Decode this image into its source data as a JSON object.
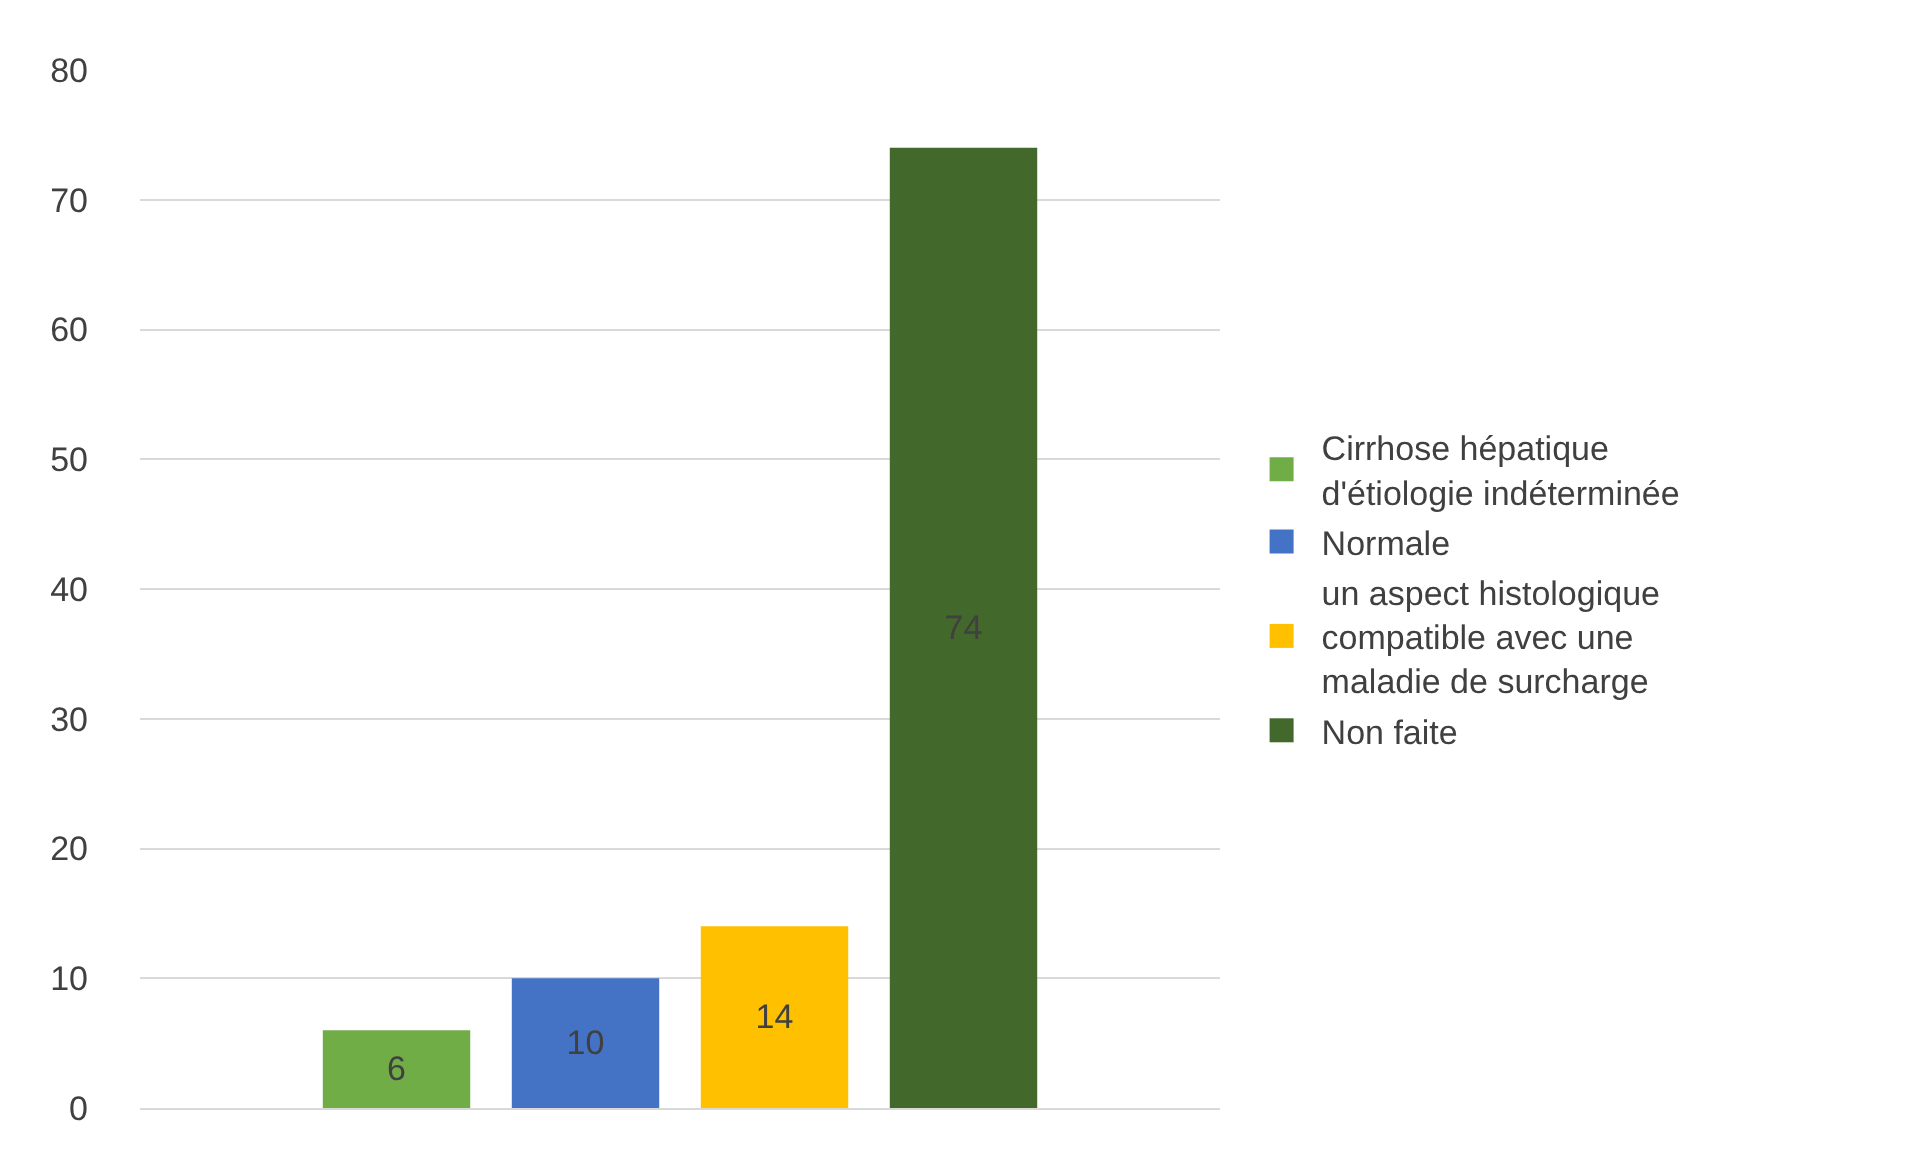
{
  "chart_data": {
    "type": "bar",
    "categories": [
      null
    ],
    "series": [
      {
        "name": "Cirrhose hépatique d'étiologie indéterminée",
        "color": "#70ad47",
        "values": [
          6
        ]
      },
      {
        "name": "Normale",
        "color": "#4472c4",
        "values": [
          10
        ]
      },
      {
        "name": "un aspect histologique compatible avec une maladie de surcharge",
        "color": "#ffc000",
        "values": [
          14
        ]
      },
      {
        "name": "Non faite",
        "color": "#43682b",
        "values": [
          74
        ]
      }
    ],
    "ylim": [
      0,
      80
    ],
    "yticks": [
      0,
      10,
      20,
      30,
      40,
      50,
      60,
      70,
      80
    ],
    "grid": "y",
    "legend": "right",
    "data_labels": true
  }
}
